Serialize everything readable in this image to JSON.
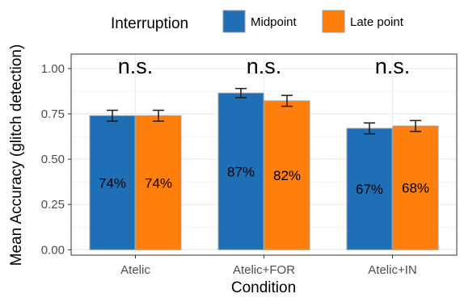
{
  "chart_data": {
    "type": "bar",
    "categories": [
      "Atelic",
      "Atelic+FOR",
      "Atelic+IN"
    ],
    "series": [
      {
        "name": "Midpoint",
        "color": "#1f6fb6",
        "values": [
          0.74,
          0.865,
          0.67
        ],
        "error": [
          0.03,
          0.025,
          0.03
        ],
        "labels": [
          "74%",
          "87%",
          "67%"
        ]
      },
      {
        "name": "Late point",
        "color": "#ff7f0e",
        "values": [
          0.74,
          0.822,
          0.683
        ],
        "error": [
          0.03,
          0.03,
          0.03
        ],
        "labels": [
          "74%",
          "82%",
          "68%"
        ]
      }
    ],
    "significance": [
      "n.s.",
      "n.s.",
      "n.s."
    ],
    "xlabel": "Condition",
    "ylabel": "Mean Accuracy (glitch detection)",
    "ylim": [
      -0.03,
      1.08
    ],
    "yticks": [
      0.0,
      0.25,
      0.5,
      0.75,
      1.0
    ],
    "ytick_labels": [
      "0.00",
      "0.25",
      "0.50",
      "0.75",
      "1.00"
    ],
    "legend": {
      "title": "Interruption",
      "position": "top"
    },
    "grid": true,
    "panel_border": "#333333",
    "grid_color": "#ebebeb"
  }
}
